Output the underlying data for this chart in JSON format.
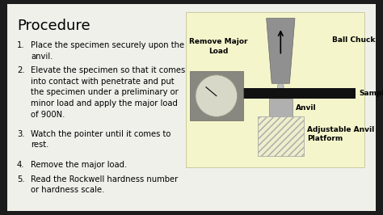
{
  "bg_color": "#1c1c1c",
  "slide_bg": "#f0f0eb",
  "title": "Procedure",
  "steps": [
    [
      "1.",
      "Place the specimen securely upon the\nanvil."
    ],
    [
      "2.",
      "Elevate the specimen so that it comes\ninto contact with penetrate and put\nthe specimen under a preliminary or\nminor load and apply the major load\nof 900N."
    ],
    [
      "3.",
      "Watch the pointer until it comes to\nrest."
    ],
    [
      "4.",
      "Remove the major load."
    ],
    [
      "5.",
      "Read the Rockwell hardness number\nor hardness scale."
    ]
  ],
  "diagram_bg": "#f5f5cc",
  "diagram_labels": {
    "remove_major_load": "Remove Major\nLoad",
    "ball_chuck": "Ball Chuck",
    "sample": "Sample",
    "anvil": "Anvil",
    "adjustable": "Adjustable Anvil\nPlatform"
  },
  "title_fontsize": 13,
  "step_fontsize": 7.2,
  "label_fontsize": 6.2,
  "label_fontsize_bold": 6.5
}
